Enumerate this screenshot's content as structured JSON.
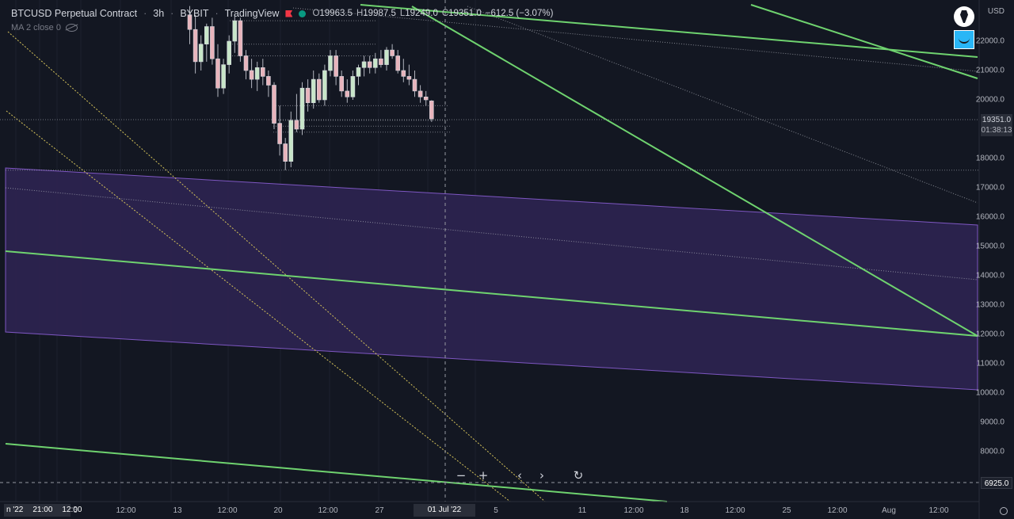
{
  "header": {
    "symbol": "BTCUSD Perpetual Contract",
    "interval": "3h",
    "exchange": "BYBIT",
    "source": "TradingView",
    "ohlc": {
      "o_key": "O",
      "o": "19963.5",
      "h_key": "H",
      "h": "19987.5",
      "l_key": "L",
      "l": "19249.0",
      "c_key": "C",
      "c": "19351.0",
      "change": "−612.5 (−3.07%)"
    }
  },
  "indicator": {
    "label": "MA 2 close 0"
  },
  "price_axis": {
    "currency": "USD",
    "labels": [
      "22000.0",
      "21000.0",
      "20000.0",
      "18000.0",
      "17000.0",
      "16000.0",
      "15000.0",
      "14000.0",
      "13000.0",
      "12000.0",
      "11000.0",
      "10000.0",
      "9000.0",
      "8000.0"
    ],
    "current_price": "19351.0",
    "countdown": "01:38:13",
    "crosshair_price": "6925.0"
  },
  "time_axis": {
    "left_labels": [
      "n '22",
      "21:00",
      "12:00"
    ],
    "labels": [
      "6",
      "12:00",
      "13",
      "12:00",
      "20",
      "12:00",
      "27",
      "12:00",
      "5",
      "11",
      "12:00",
      "18",
      "12:00",
      "25",
      "12:00",
      "Aug",
      "12:00"
    ],
    "crosshair_time": "01 Jul '22"
  },
  "nav": {
    "zoom_out": "−",
    "zoom_in": "+",
    "scroll_left": "‹",
    "scroll_right": "›",
    "reset": "↻"
  },
  "colors": {
    "background": "#131722",
    "up_candle": "#c8e6c9",
    "down_candle": "#e8b4bc",
    "trend_line": "#6fd36f",
    "channel_fill": "#3a2a66",
    "channel_border": "#7e57c2",
    "fib_line": "#d4c25a"
  },
  "chart_data": {
    "type": "candlestick",
    "title": "",
    "xlabel": "",
    "ylabel": "",
    "ylim": [
      6400,
      23300
    ],
    "x_axis": "time",
    "candles": [
      {
        "o": 22900,
        "h": 23200,
        "l": 21900,
        "c": 22400
      },
      {
        "o": 22400,
        "h": 22900,
        "l": 20900,
        "c": 21300
      },
      {
        "o": 21300,
        "h": 22200,
        "l": 21000,
        "c": 21900
      },
      {
        "o": 21900,
        "h": 22600,
        "l": 21300,
        "c": 22500
      },
      {
        "o": 22500,
        "h": 22800,
        "l": 21200,
        "c": 21400
      },
      {
        "o": 21400,
        "h": 21900,
        "l": 20100,
        "c": 20400
      },
      {
        "o": 20400,
        "h": 21400,
        "l": 20200,
        "c": 21200
      },
      {
        "o": 21200,
        "h": 22200,
        "l": 20900,
        "c": 22000
      },
      {
        "o": 22000,
        "h": 22900,
        "l": 21600,
        "c": 22700
      },
      {
        "o": 22700,
        "h": 22800,
        "l": 21300,
        "c": 21500
      },
      {
        "o": 21500,
        "h": 21700,
        "l": 20700,
        "c": 21000
      },
      {
        "o": 21000,
        "h": 21400,
        "l": 20400,
        "c": 20700
      },
      {
        "o": 20700,
        "h": 21300,
        "l": 20300,
        "c": 21100
      },
      {
        "o": 21100,
        "h": 21400,
        "l": 20500,
        "c": 20800
      },
      {
        "o": 20800,
        "h": 21000,
        "l": 20100,
        "c": 20500
      },
      {
        "o": 20500,
        "h": 20600,
        "l": 19000,
        "c": 19200
      },
      {
        "o": 19200,
        "h": 19800,
        "l": 18100,
        "c": 18500
      },
      {
        "o": 18500,
        "h": 18700,
        "l": 17600,
        "c": 17900
      },
      {
        "o": 17900,
        "h": 19600,
        "l": 17700,
        "c": 19300
      },
      {
        "o": 19300,
        "h": 20200,
        "l": 18900,
        "c": 19000
      },
      {
        "o": 19000,
        "h": 20600,
        "l": 18800,
        "c": 20400
      },
      {
        "o": 20400,
        "h": 20700,
        "l": 19600,
        "c": 19900
      },
      {
        "o": 19900,
        "h": 21000,
        "l": 19700,
        "c": 20700
      },
      {
        "o": 20700,
        "h": 20900,
        "l": 19900,
        "c": 20000
      },
      {
        "o": 20000,
        "h": 21200,
        "l": 19800,
        "c": 21000
      },
      {
        "o": 21000,
        "h": 21700,
        "l": 20800,
        "c": 21500
      },
      {
        "o": 21500,
        "h": 21700,
        "l": 20500,
        "c": 20800
      },
      {
        "o": 20800,
        "h": 21000,
        "l": 20100,
        "c": 20300
      },
      {
        "o": 20300,
        "h": 20700,
        "l": 19900,
        "c": 20100
      },
      {
        "o": 20100,
        "h": 21000,
        "l": 20000,
        "c": 20800
      },
      {
        "o": 20800,
        "h": 21200,
        "l": 20500,
        "c": 21100
      },
      {
        "o": 21100,
        "h": 21500,
        "l": 20800,
        "c": 21300
      },
      {
        "o": 21300,
        "h": 21500,
        "l": 20900,
        "c": 21100
      },
      {
        "o": 21100,
        "h": 21600,
        "l": 20900,
        "c": 21400
      },
      {
        "o": 21400,
        "h": 21700,
        "l": 21100,
        "c": 21200
      },
      {
        "o": 21200,
        "h": 21800,
        "l": 21000,
        "c": 21700
      },
      {
        "o": 21700,
        "h": 21900,
        "l": 21400,
        "c": 21500
      },
      {
        "o": 21500,
        "h": 21700,
        "l": 20900,
        "c": 21000
      },
      {
        "o": 21000,
        "h": 21400,
        "l": 20600,
        "c": 20800
      },
      {
        "o": 20800,
        "h": 21200,
        "l": 20500,
        "c": 20700
      },
      {
        "o": 20700,
        "h": 21000,
        "l": 20100,
        "c": 20300
      },
      {
        "o": 20300,
        "h": 20500,
        "l": 19900,
        "c": 20100
      },
      {
        "o": 20100,
        "h": 20300,
        "l": 19800,
        "c": 20000
      },
      {
        "o": 19963.5,
        "h": 19987.5,
        "l": 19249,
        "c": 19351
      }
    ],
    "horizontal_levels": [
      22700,
      21900,
      21500,
      19800,
      19300,
      19100,
      18900,
      17600,
      6925
    ]
  }
}
